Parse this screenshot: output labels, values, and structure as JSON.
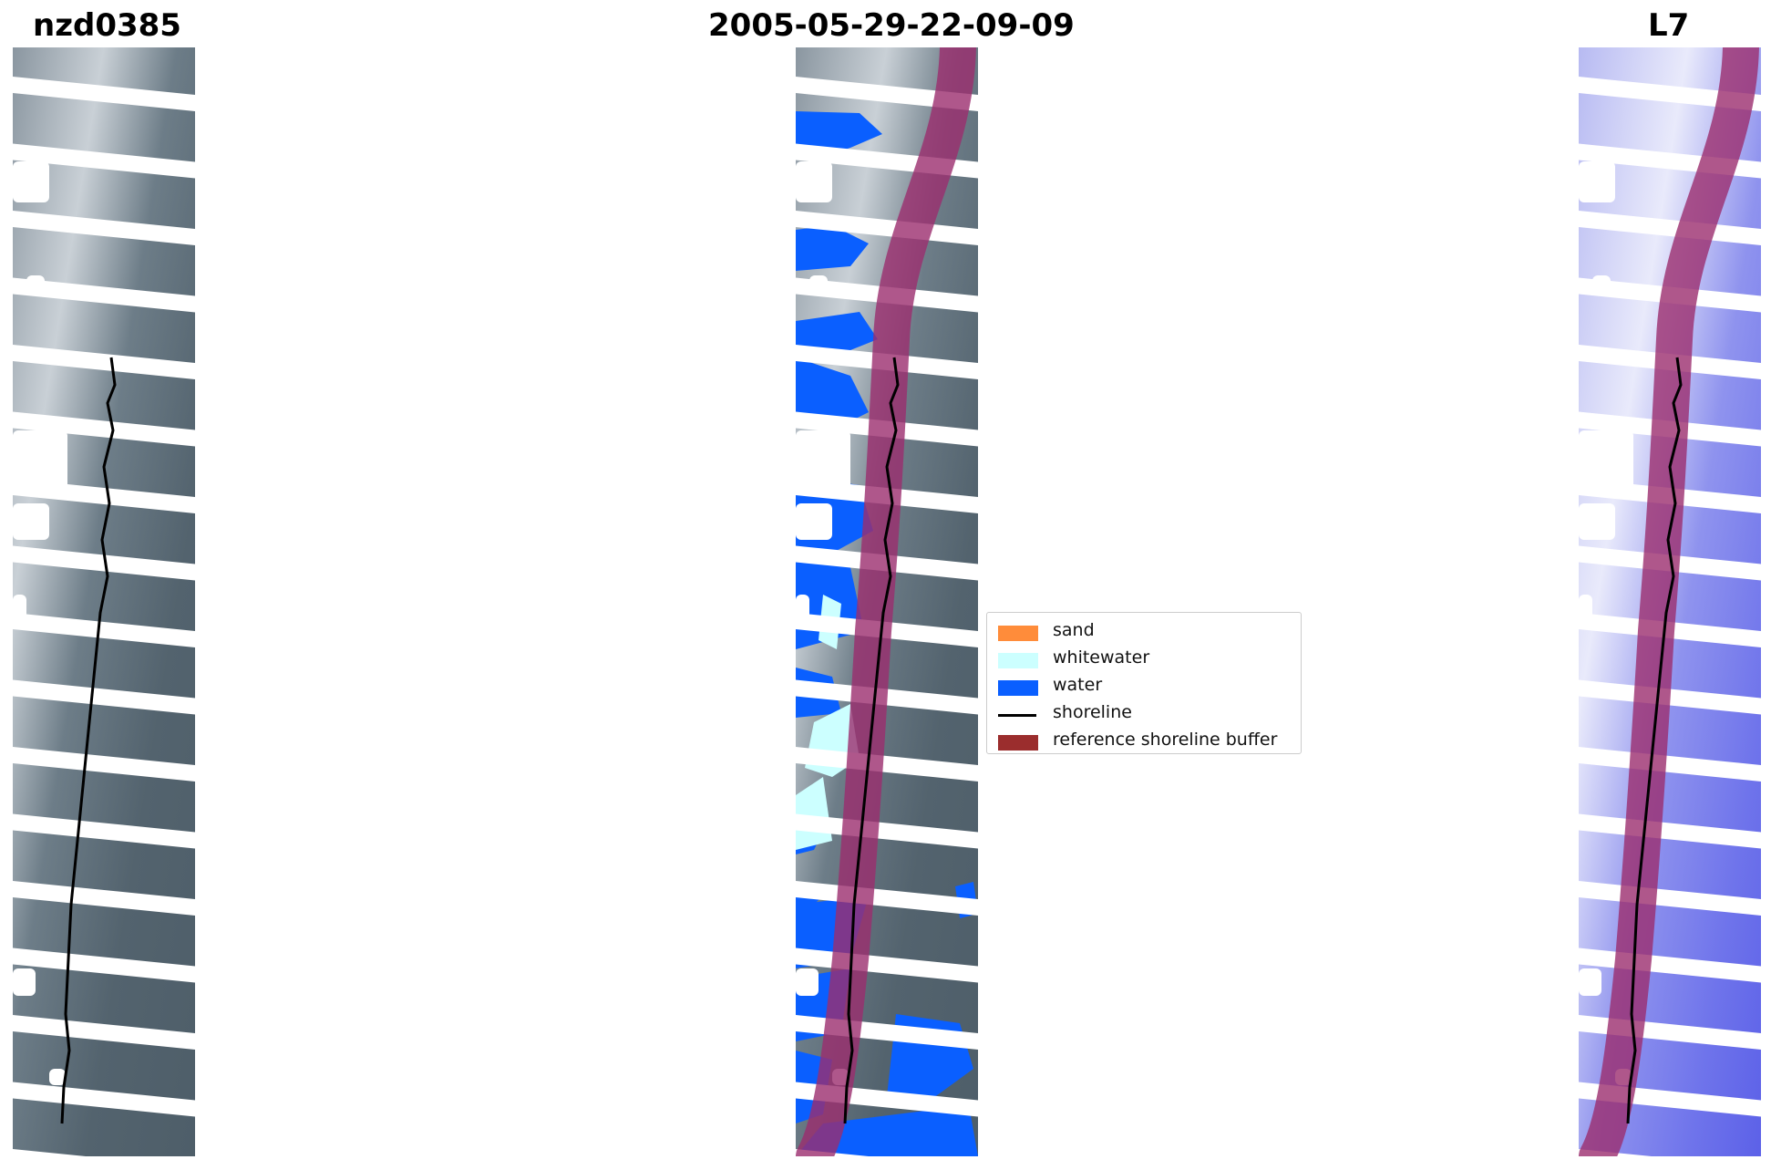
{
  "titles": {
    "left": "nzd0385",
    "middle": "2005-05-29-22-09-09",
    "right": "L7"
  },
  "legend": {
    "items": [
      {
        "label": "sand",
        "color": "#ff8c3a",
        "kind": "patch"
      },
      {
        "label": "whitewater",
        "color": "#ccffff",
        "kind": "patch"
      },
      {
        "label": "water",
        "color": "#0a5fff",
        "kind": "patch"
      },
      {
        "label": "shoreline",
        "color": "#000000",
        "kind": "line"
      },
      {
        "label": "reference shoreline buffer",
        "color": "#9b2d2d",
        "kind": "patch"
      }
    ]
  },
  "colors": {
    "buffer_overlay": "#9b2d6e",
    "panel_left_base": "#5a6a74",
    "panel_right_base": "#7a7ff0",
    "water": "#0a5fff",
    "whitewater": "#ccffff",
    "shoreline": "#000000"
  }
}
